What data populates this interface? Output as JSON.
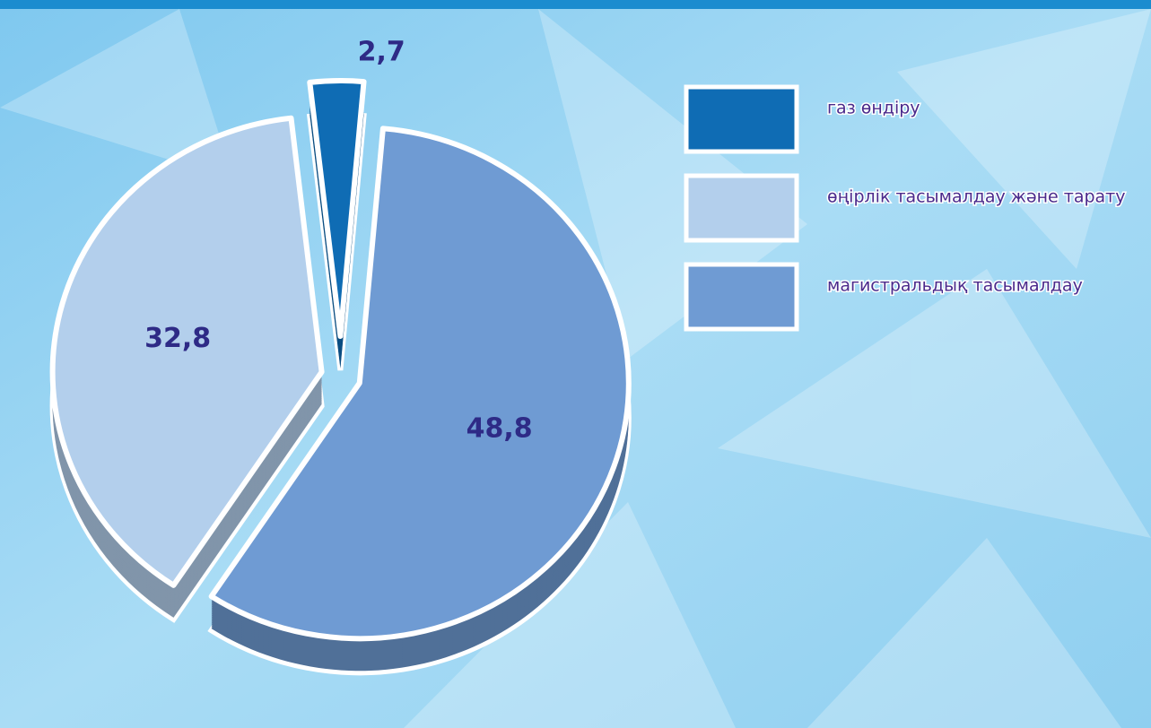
{
  "chart_data": {
    "type": "pie",
    "categories": [
      "газ өндіру",
      "өңірлік тасымалдау және тарату",
      "магистральдық тасымалдау"
    ],
    "values": [
      2.7,
      32.8,
      48.8
    ],
    "value_labels": [
      "2,7",
      "32,8",
      "48,8"
    ],
    "colors": [
      "#0f6cb4",
      "#b3cfec",
      "#6f9bd3"
    ]
  }
}
